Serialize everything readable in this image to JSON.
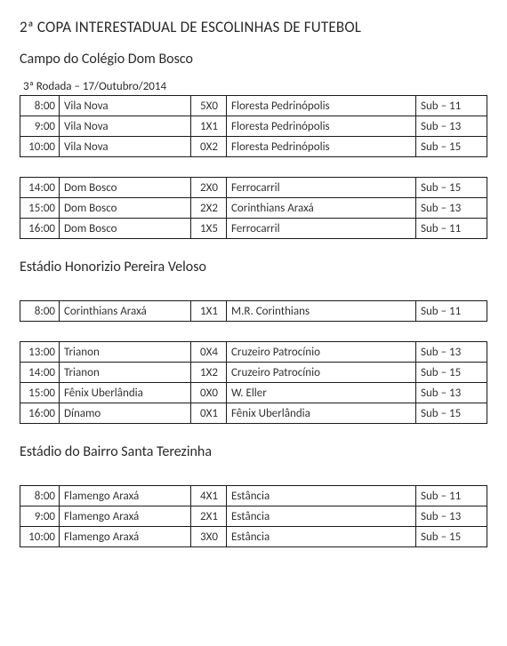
{
  "title": "2ª COPA INTERESTADUAL DE ESCOLINHAS DE FUTEBOL",
  "round_label": "3ª Rodada – 17/Outubro/2014",
  "venues": [
    {
      "name": "Campo do Colégio Dom Bosco",
      "blocks": [
        {
          "rows": [
            {
              "time": "8:00",
              "home": "Vila Nova",
              "score": "5X0",
              "away": "Floresta Pedrinópolis",
              "cat": "Sub – 11"
            },
            {
              "time": "9:00",
              "home": "Vila Nova",
              "score": "1X1",
              "away": "Floresta Pedrinópolis",
              "cat": "Sub – 13"
            },
            {
              "time": "10:00",
              "home": "Vila Nova",
              "score": "0X2",
              "away": "Floresta Pedrinópolis",
              "cat": "Sub – 15"
            }
          ]
        },
        {
          "rows": [
            {
              "time": "14:00",
              "home": "Dom Bosco",
              "score": "2X0",
              "away": "Ferrocarril",
              "cat": "Sub – 15"
            },
            {
              "time": "15:00",
              "home": "Dom Bosco",
              "score": "2X2",
              "away": "Corinthians Araxá",
              "cat": "Sub – 13"
            },
            {
              "time": "16:00",
              "home": "Dom Bosco",
              "score": "1X5",
              "away": "Ferrocarril",
              "cat": "Sub – 11"
            }
          ]
        }
      ]
    },
    {
      "name": "Estádio Honorizio Pereira Veloso",
      "blocks": [
        {
          "rows": [
            {
              "time": "8:00",
              "home": "Corinthians Araxá",
              "score": "1X1",
              "away": "M.R. Corinthians",
              "cat": "Sub – 11"
            }
          ]
        },
        {
          "rows": [
            {
              "time": "13:00",
              "home": "Trianon",
              "score": "0X4",
              "away": "Cruzeiro Patrocínio",
              "cat": "Sub – 13"
            },
            {
              "time": "14:00",
              "home": "Trianon",
              "score": "1X2",
              "away": "Cruzeiro Patrocínio",
              "cat": "Sub – 15"
            },
            {
              "time": "15:00",
              "home": "Fênix Uberlândia",
              "score": "0X0",
              "away": "W. Eller",
              "cat": "Sub – 13"
            },
            {
              "time": "16:00",
              "home": "Dínamo",
              "score": "0X1",
              "away": "Fênix Uberlândia",
              "cat": "Sub – 15"
            }
          ]
        }
      ]
    },
    {
      "name": "Estádio do Bairro Santa Terezinha",
      "blocks": [
        {
          "rows": [
            {
              "time": "8:00",
              "home": "Flamengo Araxá",
              "score": "4X1",
              "away": "Estância",
              "cat": "Sub – 11"
            },
            {
              "time": "9:00",
              "home": "Flamengo Araxá",
              "score": "2X1",
              "away": "Estância",
              "cat": "Sub – 13"
            },
            {
              "time": "10:00",
              "home": "Flamengo Araxá",
              "score": "3X0",
              "away": "Estância",
              "cat": "Sub – 15"
            }
          ]
        }
      ]
    }
  ]
}
